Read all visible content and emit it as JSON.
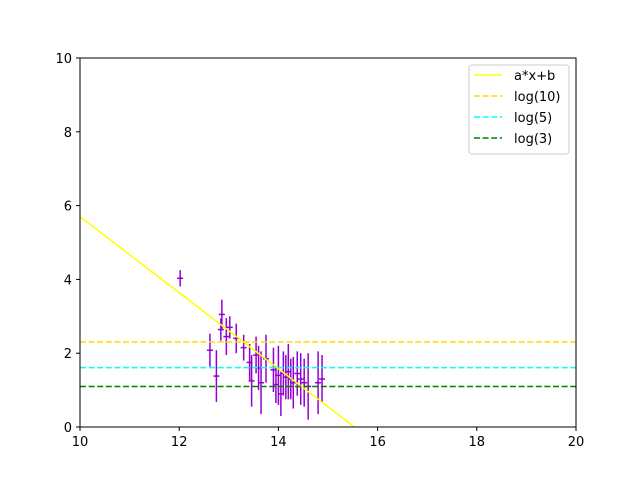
{
  "chart_data": {
    "type": "scatter",
    "title": "",
    "xlabel": "",
    "ylabel": "",
    "xlim": [
      10,
      20
    ],
    "ylim": [
      0,
      10
    ],
    "x_ticks": [
      "10",
      "12",
      "14",
      "16",
      "18",
      "20"
    ],
    "y_ticks": [
      "0",
      "2",
      "4",
      "6",
      "8",
      "10"
    ],
    "grid": false,
    "legend_position": "top-right",
    "fit_line": {
      "label": "a*x+b",
      "color": "#ffff00",
      "points": [
        [
          10,
          5.7
        ],
        [
          15.53,
          0
        ]
      ]
    },
    "hlines": [
      {
        "label": "log(10)",
        "y": 2.302585,
        "color": "#ffd700",
        "style": "dashed"
      },
      {
        "label": "log(5)",
        "y": 1.609438,
        "color": "#00ffff",
        "style": "dashed"
      },
      {
        "label": "log(3)",
        "y": 1.098612,
        "color": "#008000",
        "style": "dashed"
      }
    ],
    "points_color": "#9400d3",
    "points": [
      {
        "x": 12.02,
        "y": 4.03,
        "xerr": 0.06,
        "yerr": 0.22
      },
      {
        "x": 12.62,
        "y": 2.08,
        "xerr": 0.06,
        "yerr": 0.45
      },
      {
        "x": 12.75,
        "y": 1.38,
        "xerr": 0.06,
        "yerr": 0.7
      },
      {
        "x": 12.84,
        "y": 2.64,
        "xerr": 0.06,
        "yerr": 0.3
      },
      {
        "x": 12.86,
        "y": 3.05,
        "xerr": 0.06,
        "yerr": 0.4
      },
      {
        "x": 12.95,
        "y": 2.45,
        "xerr": 0.06,
        "yerr": 0.5
      },
      {
        "x": 13.02,
        "y": 2.7,
        "xerr": 0.06,
        "yerr": 0.3
      },
      {
        "x": 13.15,
        "y": 2.4,
        "xerr": 0.06,
        "yerr": 0.4
      },
      {
        "x": 13.3,
        "y": 2.15,
        "xerr": 0.06,
        "yerr": 0.35
      },
      {
        "x": 13.42,
        "y": 1.75,
        "xerr": 0.06,
        "yerr": 0.5
      },
      {
        "x": 13.46,
        "y": 1.25,
        "xerr": 0.06,
        "yerr": 0.7
      },
      {
        "x": 13.55,
        "y": 1.95,
        "xerr": 0.06,
        "yerr": 0.5
      },
      {
        "x": 13.6,
        "y": 1.6,
        "xerr": 0.06,
        "yerr": 0.6
      },
      {
        "x": 13.65,
        "y": 1.2,
        "xerr": 0.06,
        "yerr": 0.85
      },
      {
        "x": 13.75,
        "y": 1.85,
        "xerr": 0.06,
        "yerr": 0.65
      },
      {
        "x": 13.9,
        "y": 1.55,
        "xerr": 0.06,
        "yerr": 0.6
      },
      {
        "x": 13.95,
        "y": 1.15,
        "xerr": 0.06,
        "yerr": 0.5
      },
      {
        "x": 14.0,
        "y": 1.4,
        "xerr": 0.06,
        "yerr": 0.8
      },
      {
        "x": 14.05,
        "y": 0.9,
        "xerr": 0.06,
        "yerr": 0.6
      },
      {
        "x": 14.1,
        "y": 1.45,
        "xerr": 0.06,
        "yerr": 0.6
      },
      {
        "x": 14.15,
        "y": 1.35,
        "xerr": 0.06,
        "yerr": 0.6
      },
      {
        "x": 14.2,
        "y": 1.5,
        "xerr": 0.06,
        "yerr": 0.75
      },
      {
        "x": 14.25,
        "y": 1.3,
        "xerr": 0.06,
        "yerr": 0.55
      },
      {
        "x": 14.3,
        "y": 1.2,
        "xerr": 0.06,
        "yerr": 0.7
      },
      {
        "x": 14.38,
        "y": 1.45,
        "xerr": 0.06,
        "yerr": 0.6
      },
      {
        "x": 14.45,
        "y": 1.3,
        "xerr": 0.06,
        "yerr": 0.7
      },
      {
        "x": 14.52,
        "y": 1.2,
        "xerr": 0.06,
        "yerr": 0.65
      },
      {
        "x": 14.6,
        "y": 1.1,
        "xerr": 0.06,
        "yerr": 0.9
      },
      {
        "x": 14.8,
        "y": 1.2,
        "xerr": 0.06,
        "yerr": 0.85
      },
      {
        "x": 14.88,
        "y": 1.3,
        "xerr": 0.06,
        "yerr": 0.65
      }
    ]
  }
}
